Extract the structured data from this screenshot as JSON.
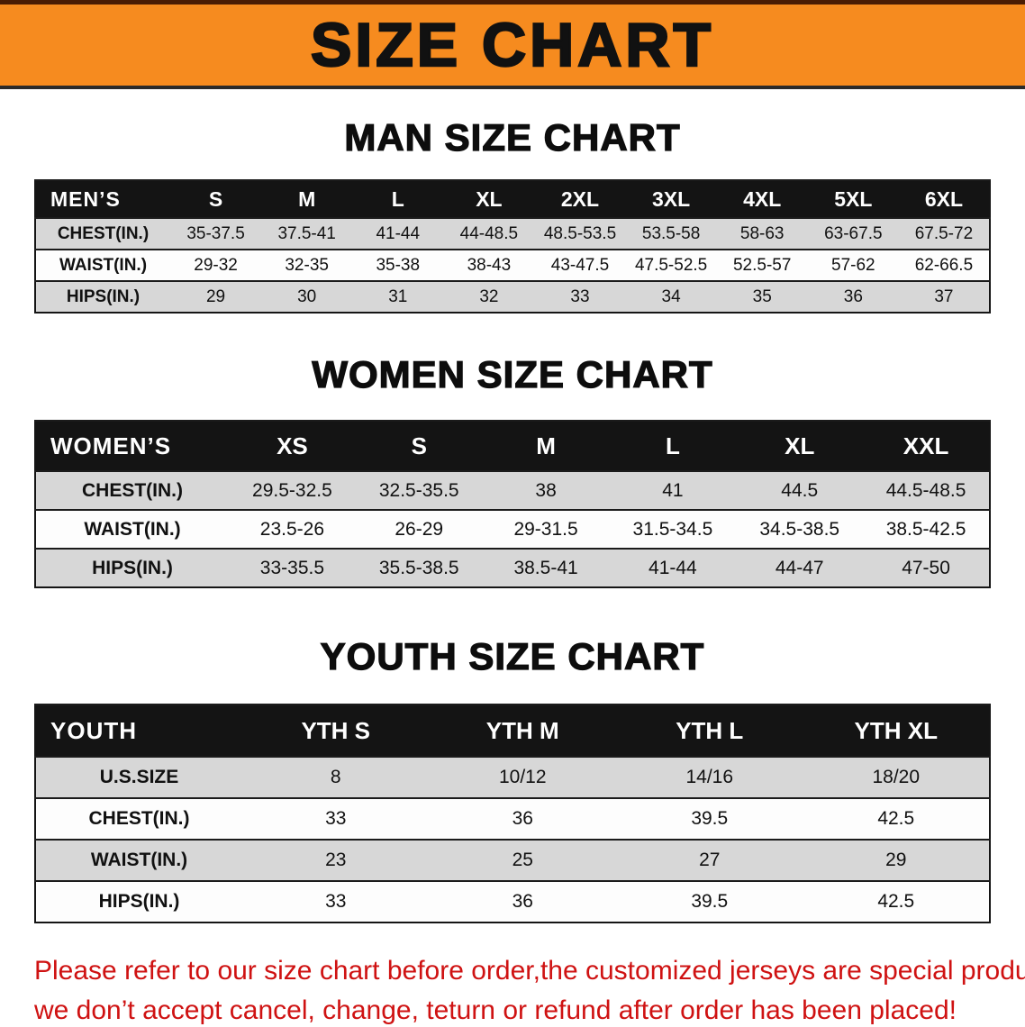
{
  "colors": {
    "banner_orange": "#f68b1f",
    "header_black": "#141414",
    "row_gray": "#d7d7d7",
    "disclaimer_red": "#cf1212",
    "title_black": "#111111"
  },
  "banner": {
    "title": "SIZE CHART"
  },
  "man": {
    "heading": "MAN SIZE CHART",
    "table": {
      "label": "MEN’S",
      "columns": [
        "S",
        "M",
        "L",
        "XL",
        "2XL",
        "3XL",
        "4XL",
        "5XL",
        "6XL"
      ],
      "rows": [
        {
          "label": "CHEST(IN.)",
          "values": [
            "35-37.5",
            "37.5-41",
            "41-44",
            "44-48.5",
            "48.5-53.5",
            "53.5-58",
            "58-63",
            "63-67.5",
            "67.5-72"
          ]
        },
        {
          "label": "WAIST(IN.)",
          "values": [
            "29-32",
            "32-35",
            "35-38",
            "38-43",
            "43-47.5",
            "47.5-52.5",
            "52.5-57",
            "57-62",
            "62-66.5"
          ]
        },
        {
          "label": "HIPS(IN.)",
          "values": [
            "29",
            "30",
            "31",
            "32",
            "33",
            "34",
            "35",
            "36",
            "37"
          ]
        }
      ]
    }
  },
  "women": {
    "heading": "WOMEN SIZE CHART",
    "table": {
      "label": "WOMEN’S",
      "columns": [
        "XS",
        "S",
        "M",
        "L",
        "XL",
        "XXL"
      ],
      "rows": [
        {
          "label": "CHEST(IN.)",
          "values": [
            "29.5-32.5",
            "32.5-35.5",
            "38",
            "41",
            "44.5",
            "44.5-48.5"
          ]
        },
        {
          "label": "WAIST(IN.)",
          "values": [
            "23.5-26",
            "26-29",
            "29-31.5",
            "31.5-34.5",
            "34.5-38.5",
            "38.5-42.5"
          ]
        },
        {
          "label": "HIPS(IN.)",
          "values": [
            "33-35.5",
            "35.5-38.5",
            "38.5-41",
            "41-44",
            "44-47",
            "47-50"
          ]
        }
      ]
    }
  },
  "youth": {
    "heading": "YOUTH SIZE CHART",
    "table": {
      "label": "YOUTH",
      "columns": [
        "YTH S",
        "YTH M",
        "YTH L",
        "YTH XL"
      ],
      "rows": [
        {
          "label": "U.S.SIZE",
          "values": [
            "8",
            "10/12",
            "14/16",
            "18/20"
          ]
        },
        {
          "label": "CHEST(IN.)",
          "values": [
            "33",
            "36",
            "39.5",
            "42.5"
          ]
        },
        {
          "label": "WAIST(IN.)",
          "values": [
            "23",
            "25",
            "27",
            "29"
          ]
        },
        {
          "label": "HIPS(IN.)",
          "values": [
            "33",
            "36",
            "39.5",
            "42.5"
          ]
        }
      ]
    }
  },
  "disclaimer": {
    "line1": "Please refer to our size chart before order,the customized jerseys are special products,",
    "line2": "we don’t accept cancel, change, teturn or refund after order has been placed!"
  }
}
